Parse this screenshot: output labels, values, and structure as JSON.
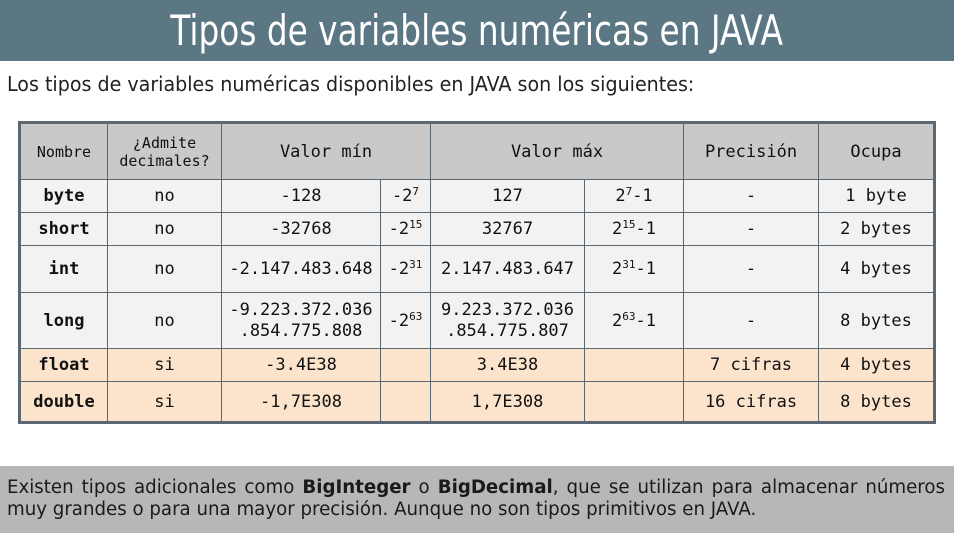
{
  "title": "Tipos de variables numéricas en JAVA",
  "intro": "Los tipos de variables numéricas disponibles en JAVA  son los siguientes:",
  "table": {
    "headers": {
      "name": "Nombre",
      "decimals": "¿Admite decimales?",
      "min": "Valor mín",
      "max": "Valor máx",
      "precision": "Precisión",
      "size": "Ocupa"
    },
    "rows": [
      {
        "name": "byte",
        "decimals": "no",
        "min": "-128",
        "min_exp_base": "-2",
        "min_exp": "7",
        "max": "127",
        "max_exp_base": "2",
        "max_exp": "7",
        "max_exp_tail": "-1",
        "precision": "-",
        "size": "1 byte"
      },
      {
        "name": "short",
        "decimals": "no",
        "min": "-32768",
        "min_exp_base": "-2",
        "min_exp": "15",
        "max": "32767",
        "max_exp_base": "2",
        "max_exp": "15",
        "max_exp_tail": "-1",
        "precision": "-",
        "size": "2 bytes"
      },
      {
        "name": "int",
        "decimals": "no",
        "min": "-2.147.483.648",
        "min_exp_base": "-2",
        "min_exp": "31",
        "max": "2.147.483.647",
        "max_exp_base": "2",
        "max_exp": "31",
        "max_exp_tail": "-1",
        "precision": "-",
        "size": "4 bytes"
      },
      {
        "name": "long",
        "decimals": "no",
        "min_line1": "-9.223.372.036",
        "min_line2": ".854.775.808",
        "min_exp_base": "-2",
        "min_exp": "63",
        "max_line1": "9.223.372.036",
        "max_line2": ".854.775.807",
        "max_exp_base": "2",
        "max_exp": "63",
        "max_exp_tail": "-1",
        "precision": "-",
        "size": "8 bytes"
      },
      {
        "name": "float",
        "decimals": "si",
        "min": "-3.4E38",
        "max": "3.4E38",
        "precision": "7 cifras",
        "size": "4 bytes"
      },
      {
        "name": "double",
        "decimals": "si",
        "min": "-1,7E308",
        "max": "1,7E308",
        "precision": "16 cifras",
        "size": "8 bytes"
      }
    ]
  },
  "footer": {
    "part1": "Existen tipos adicionales como ",
    "bold1": "BigInteger",
    "part2": " o ",
    "bold2": "BigDecimal",
    "part3": ", que se utilizan para almacenar números muy grandes o para una mayor precisión. Aunque no son tipos primitivos en JAVA."
  },
  "colors": {
    "title_bar": "#5b7784",
    "header_bg": "#c9c9c9",
    "row_bg": "#f2f2f2",
    "float_row_bg": "#fce4cc",
    "footer_bg": "#b7b7b7",
    "border": "#5b6872"
  }
}
